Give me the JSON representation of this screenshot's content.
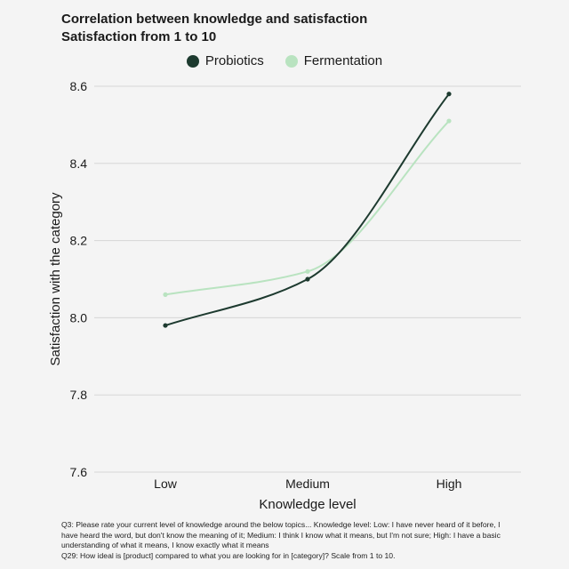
{
  "chart_data": {
    "type": "line",
    "title": "Correlation between knowledge and satisfaction",
    "subtitle": "Satisfaction from 1 to 10",
    "xlabel": "Knowledge level",
    "ylabel": "Satisfaction with the category",
    "categories": [
      "Low",
      "Medium",
      "High"
    ],
    "ylim": [
      7.6,
      8.6
    ],
    "yticks": [
      "7.6",
      "7.8",
      "8.0",
      "8.2",
      "8.4",
      "8.6"
    ],
    "grid": true,
    "legend_position": "top-center",
    "series": [
      {
        "name": "Probiotics",
        "color": "#1d3a2f",
        "values": [
          7.98,
          8.1,
          8.58
        ]
      },
      {
        "name": "Fermentation",
        "color": "#b9e3c0",
        "values": [
          8.06,
          8.12,
          8.51
        ]
      }
    ]
  },
  "footnote": {
    "q3": "Q3: Please rate your current level of knowledge around the below topics... Knowledge level: Low: I have never heard of it before, I have heard the word, but don't know the meaning of it; Medium: I think I know what it means, but I'm not sure; High: I have a basic understanding of what it means, I know exactly what it means",
    "q29": "Q29: How ideal is [product] compared to what you are looking for in [category]?  Scale from 1 to 10."
  }
}
